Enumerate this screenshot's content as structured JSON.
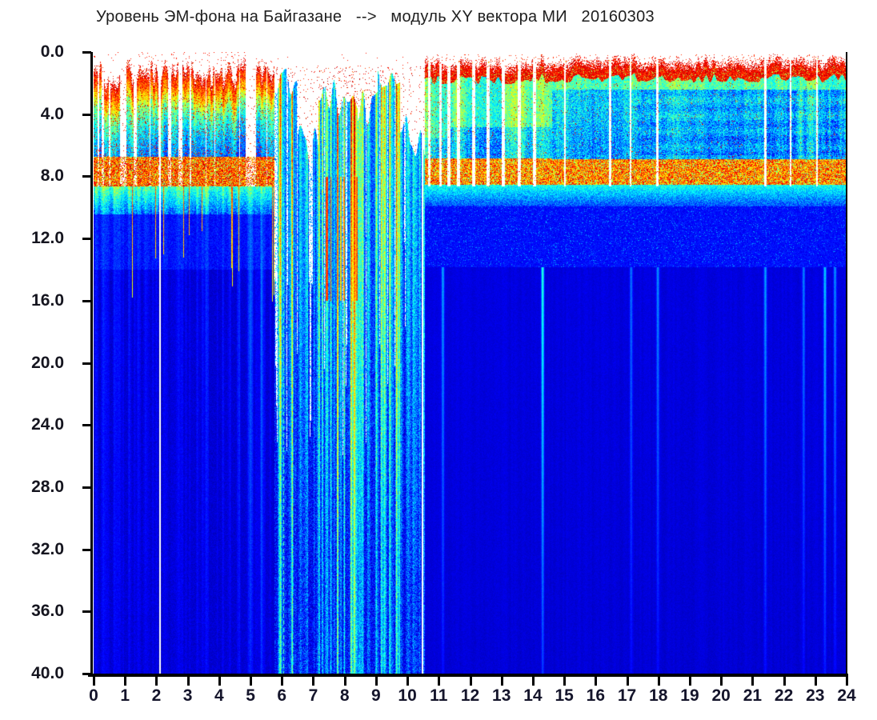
{
  "title": "Уровень ЭМ-фона на Байгазане   -->   модуль XY вектора МИ   20160303",
  "chart_data": {
    "type": "heatmap",
    "subtype": "spectrogram",
    "title": "Уровень ЭМ-фона на Байгазане   -->   модуль XY вектора МИ   20160303",
    "date": "20160303",
    "colormap": "jet",
    "background": "#ffffff",
    "axis_color": "#000000",
    "label_color": "#15151f",
    "x_axis": {
      "label": "",
      "range": [
        0,
        24
      ],
      "tick_step": 1,
      "tick_labels": [
        "0",
        "1",
        "2",
        "3",
        "4",
        "5",
        "6",
        "7",
        "8",
        "9",
        "10",
        "11",
        "12",
        "13",
        "14",
        "15",
        "16",
        "17",
        "18",
        "19",
        "20",
        "21",
        "22",
        "23",
        "24"
      ]
    },
    "y_axis": {
      "label": "",
      "range": [
        0,
        40
      ],
      "tick_step": 4,
      "inverted": true,
      "tick_labels": [
        "0.0",
        "4.0",
        "8.0",
        "12.0",
        "16.0",
        "20.0",
        "24.0",
        "28.0",
        "32.0",
        "36.0",
        "40.0"
      ]
    },
    "seed": 7,
    "segments": [
      {
        "t0": 0.0,
        "t1": 5.75,
        "kind": "bursty",
        "top_min": 0.5,
        "top_var": 2.2,
        "band": [
          6.7,
          8.6
        ],
        "spike_prob": 0.06
      },
      {
        "t0": 5.75,
        "t1": 10.55,
        "kind": "streaks",
        "clusters": [
          [
            5.75,
            6.5,
            1.0,
            3.0,
            0.9
          ],
          [
            6.5,
            7.15,
            4.5,
            7.5,
            0.5
          ],
          [
            7.15,
            8.4,
            1.6,
            4.2,
            1.0
          ],
          [
            8.4,
            9.05,
            2.2,
            5.0,
            0.8
          ],
          [
            9.05,
            9.75,
            0.9,
            2.8,
            1.0
          ],
          [
            9.75,
            10.55,
            3.0,
            7.0,
            0.45
          ]
        ],
        "blob": [
          7.3,
          8.4
        ]
      },
      {
        "t0": 10.55,
        "t1": 11.35,
        "kind": "cont",
        "top_min": 0.4,
        "top_var": 0.7,
        "fringe": 1.1,
        "green_to": 5.5,
        "mottle": 0.42,
        "band": [
          6.8,
          8.5
        ],
        "red_dots": 0.05
      },
      {
        "t0": 11.35,
        "t1": 14.6,
        "kind": "cont",
        "top_min": 0.35,
        "top_var": 0.7,
        "fringe": 1.0,
        "green_to": 4.8,
        "mottle": 0.37,
        "band": [
          6.8,
          8.5
        ],
        "red_dots": 0.02,
        "colvar": 0.2
      },
      {
        "t0": 14.6,
        "t1": 24.01,
        "kind": "cont",
        "top_min": 0.3,
        "top_var": 0.6,
        "fringe": 1.05,
        "green_to": 2.4,
        "mottle": 0.34,
        "band": [
          6.85,
          8.5
        ],
        "red_dots": 0.015,
        "banding_from": 17.3,
        "streaky_from": 22.2
      }
    ],
    "white_lines": [
      2.08,
      10.45
    ],
    "dashed_line": {
      "t": 6.05,
      "from_depth": 8.8,
      "value": 0.45
    },
    "gaps": [
      {
        "t": 10.68,
        "w": 0.07
      },
      {
        "t": 11.05,
        "w": 0.07
      },
      {
        "t": 11.31,
        "w": 0.09
      },
      {
        "t": 11.62,
        "w": 0.11
      },
      {
        "t": 12.1,
        "w": 0.11
      },
      {
        "t": 12.55,
        "w": 0.1
      },
      {
        "t": 13.05,
        "w": 0.1
      },
      {
        "t": 13.55,
        "w": 0.1
      },
      {
        "t": 14.05,
        "w": 0.1
      },
      {
        "t": 15.02,
        "w": 0.05
      },
      {
        "t": 16.45,
        "w": 0.07
      },
      {
        "t": 17.1,
        "w": 0.07
      },
      {
        "t": 17.95,
        "w": 0.08
      },
      {
        "t": 21.4,
        "w": 0.07
      },
      {
        "t": 22.2,
        "w": 0.06
      },
      {
        "t": 23.05,
        "w": 0.06
      }
    ],
    "deep_streaks": [
      {
        "t": 11.12,
        "v": 0.22
      },
      {
        "t": 14.3,
        "v": 0.36
      },
      {
        "t": 17.12,
        "v": 0.16
      },
      {
        "t": 17.97,
        "v": 0.2
      },
      {
        "t": 21.4,
        "v": 0.22
      },
      {
        "t": 22.62,
        "v": 0.18
      },
      {
        "t": 23.3,
        "v": 0.26
      },
      {
        "t": 23.62,
        "v": 0.2
      }
    ]
  }
}
